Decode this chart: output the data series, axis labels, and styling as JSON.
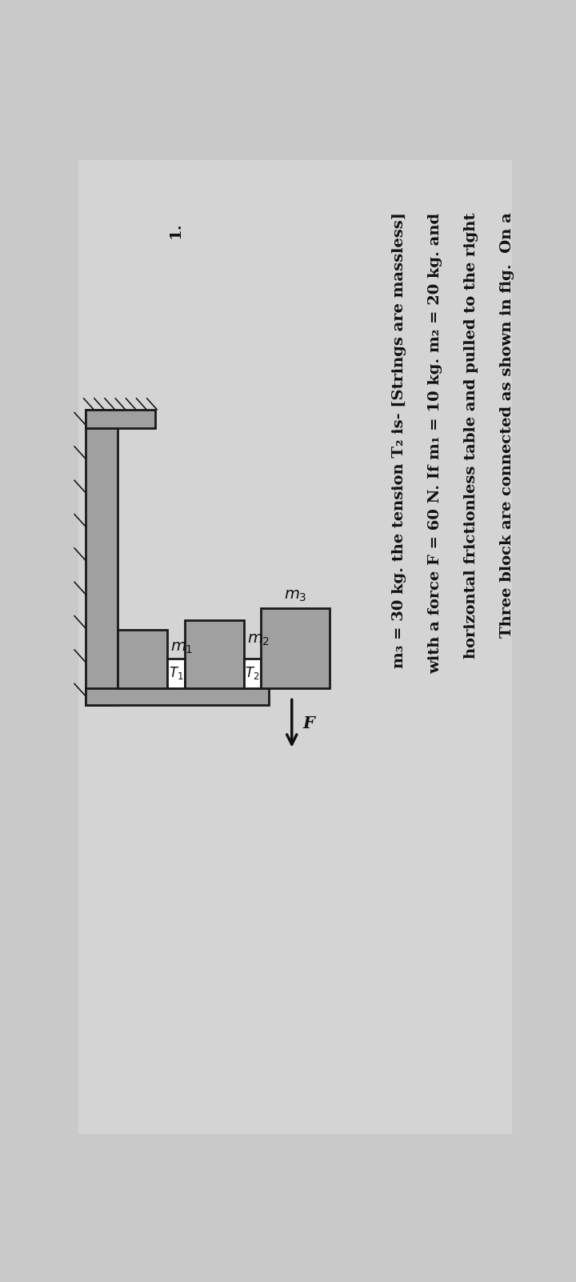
{
  "page_bg": "#c9c9c9",
  "block_fill": "#a0a0a0",
  "block_edge": "#1a1a1a",
  "white_fill": "#ffffff",
  "table_fill": "#a0a0a0",
  "arrow_color": "#111111",
  "label_color": "#111111",
  "title_num": "1.",
  "line1": "Three block are connected as shown in fig.  On a",
  "line2": "horizontal frictionless table and pulled to the right",
  "line3": "with a force F = 60 N. If m₁ = 10 kg. m₂ = 20 kg. and",
  "line4": "m₃ = 30 kg. the tension T₂ is- [Strings are massless]",
  "font_size_text": 14,
  "font_size_label": 12
}
